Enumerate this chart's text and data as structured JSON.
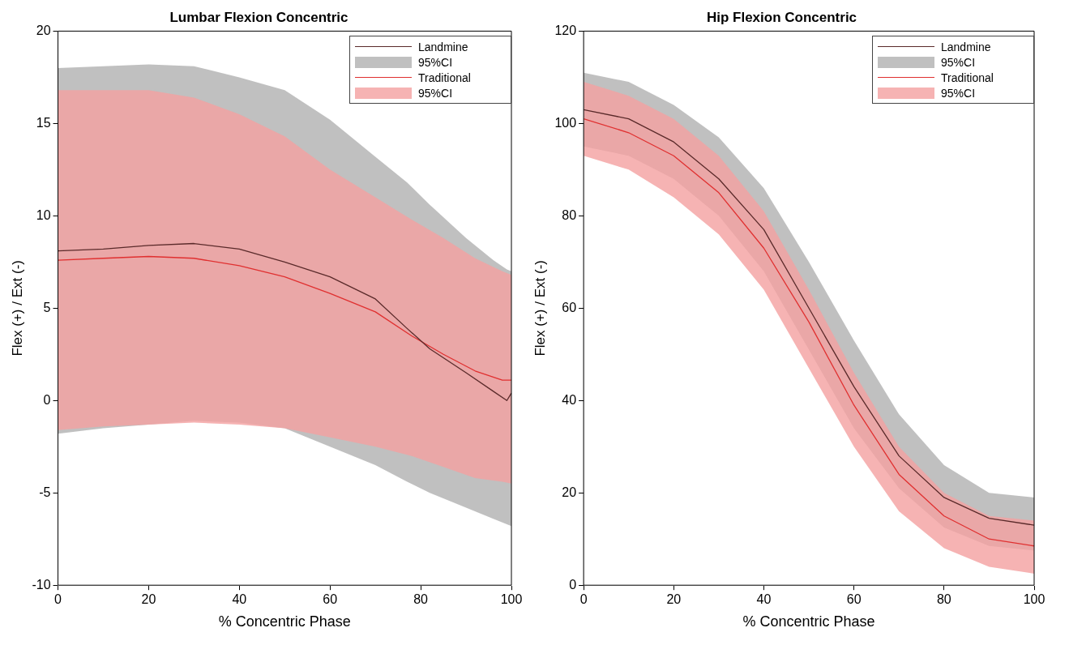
{
  "chart_data": [
    {
      "type": "line",
      "title": "Lumbar Flexion Concentric",
      "xlabel": "% Concentric Phase",
      "ylabel": "Flex (+) / Ext (-)",
      "xlim": [
        0,
        100
      ],
      "xticks": [
        0,
        20,
        40,
        60,
        80,
        100
      ],
      "ylim": [
        -10,
        20
      ],
      "yticks": [
        -10,
        -5,
        0,
        5,
        10,
        15,
        20
      ],
      "grid": false,
      "legend": "top right",
      "annotations": [
        "95%CI",
        "95%CI"
      ],
      "series": [
        {
          "name": "Landmine",
          "color": "#5a2a2a",
          "x": [
            0,
            10,
            20,
            30,
            40,
            50,
            60,
            70,
            77,
            82,
            90,
            96,
            99,
            100
          ],
          "values": [
            8.1,
            8.2,
            8.4,
            8.5,
            8.2,
            7.5,
            6.7,
            5.5,
            3.9,
            2.8,
            1.5,
            0.5,
            0,
            0.4
          ],
          "upper": [
            18,
            18.1,
            18.2,
            18.1,
            17.5,
            16.8,
            15.2,
            13.2,
            11.8,
            10.6,
            8.8,
            7.6,
            7.1,
            7
          ],
          "lower": [
            -1.8,
            -1.5,
            -1.3,
            -1.1,
            -1.2,
            -1.5,
            -2.5,
            -3.5,
            -4.4,
            -5,
            -5.8,
            -6.4,
            -6.7,
            -6.8
          ]
        },
        {
          "name": "Traditional",
          "color": "#e03030",
          "x": [
            0,
            10,
            20,
            30,
            40,
            50,
            60,
            70,
            78,
            85,
            92,
            98,
            100
          ],
          "values": [
            7.6,
            7.7,
            7.8,
            7.7,
            7.3,
            6.7,
            5.8,
            4.8,
            3.5,
            2.5,
            1.6,
            1.1,
            1.1
          ],
          "upper": [
            16.8,
            16.8,
            16.8,
            16.4,
            15.5,
            14.3,
            12.5,
            11,
            9.8,
            8.8,
            7.7,
            7,
            6.8
          ],
          "lower": [
            -1.6,
            -1.4,
            -1.3,
            -1.2,
            -1.3,
            -1.5,
            -2,
            -2.5,
            -3,
            -3.6,
            -4.2,
            -4.4,
            -4.5
          ]
        }
      ]
    },
    {
      "type": "line",
      "title": "Hip Flexion Concentric",
      "xlabel": "% Concentric Phase",
      "ylabel": "Flex (+) / Ext (-)",
      "xlim": [
        0,
        100
      ],
      "xticks": [
        0,
        20,
        40,
        60,
        80,
        100
      ],
      "ylim": [
        0,
        120
      ],
      "yticks": [
        0,
        20,
        40,
        60,
        80,
        100,
        120
      ],
      "grid": false,
      "legend": "top right",
      "annotations": [
        "95%CI",
        "95%CI"
      ],
      "series": [
        {
          "name": "Landmine",
          "color": "#5a2a2a",
          "x": [
            0,
            10,
            20,
            30,
            40,
            50,
            60,
            70,
            80,
            90,
            100
          ],
          "values": [
            103,
            101,
            96,
            88,
            77,
            60,
            43,
            28,
            19,
            14.5,
            13
          ],
          "upper": [
            111,
            109,
            104,
            97,
            86,
            70,
            53,
            37,
            26,
            20,
            19
          ],
          "lower": [
            95,
            93,
            88,
            80,
            68,
            51,
            34,
            21,
            12.5,
            8.5,
            7.5
          ]
        },
        {
          "name": "Traditional",
          "color": "#e03030",
          "x": [
            0,
            10,
            20,
            30,
            40,
            50,
            60,
            70,
            80,
            90,
            100
          ],
          "values": [
            101,
            98,
            93,
            85,
            73,
            57,
            39,
            24,
            15,
            10,
            8.5
          ],
          "upper": [
            109,
            106,
            101,
            93,
            81,
            64,
            46,
            30,
            20,
            15,
            14
          ],
          "lower": [
            93,
            90,
            84,
            76,
            64,
            47,
            30,
            16,
            8,
            4,
            2.5
          ]
        }
      ]
    }
  ]
}
